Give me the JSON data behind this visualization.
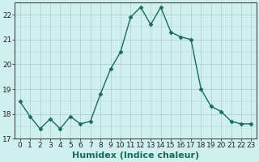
{
  "x": [
    0,
    1,
    2,
    3,
    4,
    5,
    6,
    7,
    8,
    9,
    10,
    11,
    12,
    13,
    14,
    15,
    16,
    17,
    18,
    19,
    20,
    21,
    22,
    23
  ],
  "y": [
    18.5,
    17.9,
    17.4,
    17.8,
    17.4,
    17.9,
    17.6,
    17.7,
    18.8,
    19.8,
    20.5,
    21.9,
    22.3,
    21.6,
    22.3,
    21.3,
    21.1,
    21.0,
    19.0,
    18.3,
    18.1,
    17.7,
    17.6,
    17.6
  ],
  "line_color": "#1a6b5a",
  "marker": "D",
  "marker_size": 2.5,
  "bg_color": "#cff0ee",
  "grid_color": "#b0c8c8",
  "xlabel": "Humidex (Indice chaleur)",
  "ylim": [
    17,
    22.5
  ],
  "xlim": [
    -0.5,
    23.5
  ],
  "yticks": [
    17,
    18,
    19,
    20,
    21,
    22
  ],
  "xticks": [
    0,
    1,
    2,
    3,
    4,
    5,
    6,
    7,
    8,
    9,
    10,
    11,
    12,
    13,
    14,
    15,
    16,
    17,
    18,
    19,
    20,
    21,
    22,
    23
  ],
  "tick_label_fontsize": 6.5,
  "xlabel_fontsize": 8.0,
  "line_width": 1.0
}
